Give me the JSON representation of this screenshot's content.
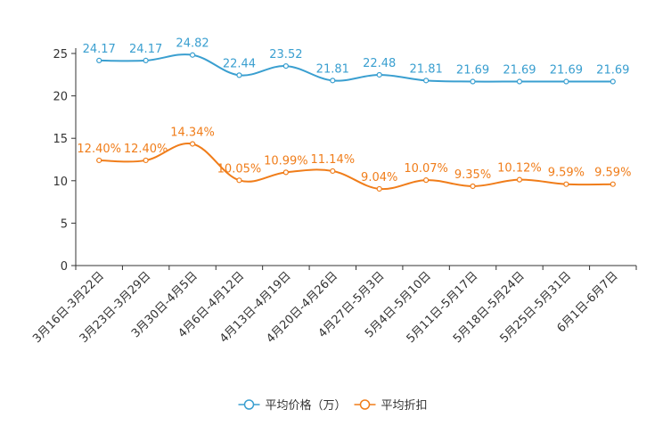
{
  "chart_data": {
    "type": "line",
    "title": "",
    "xlabel": "",
    "ylabel": "",
    "ylim": [
      0,
      25
    ],
    "yticks": [
      0,
      5,
      10,
      15,
      20,
      25
    ],
    "grid": false,
    "legend_position": "bottom-center",
    "categories": [
      "3月16日-3月22日",
      "3月23日-3月29日",
      "3月30日-4月5日",
      "4月6日-4月12日",
      "4月13日-4月19日",
      "4月20日-4月26日",
      "4月27日-5月3日",
      "5月4日-5月10日",
      "5月11日-5月17日",
      "5月18日-5月24日",
      "5月25日-5月31日",
      "6月1日-6月7日"
    ],
    "series": [
      {
        "name": "平均价格（万）",
        "color": "#3a9fd0",
        "values": [
          24.17,
          24.17,
          24.82,
          22.44,
          23.52,
          21.81,
          22.48,
          21.81,
          21.69,
          21.69,
          21.69,
          21.69
        ],
        "labels": [
          "24.17",
          "24.17",
          "24.82",
          "22.44",
          "23.52",
          "21.81",
          "22.48",
          "21.81",
          "21.69",
          "21.69",
          "21.69",
          "21.69"
        ]
      },
      {
        "name": "平均折扣",
        "color": "#f07d1a",
        "values": [
          12.4,
          12.4,
          14.34,
          10.05,
          10.99,
          11.14,
          9.04,
          10.07,
          9.35,
          10.12,
          9.59,
          9.59
        ],
        "labels": [
          "12.40%",
          "12.40%",
          "14.34%",
          "10.05%",
          "10.99%",
          "11.14%",
          "9.04%",
          "10.07%",
          "9.35%",
          "10.12%",
          "9.59%",
          "9.59%"
        ]
      }
    ]
  }
}
